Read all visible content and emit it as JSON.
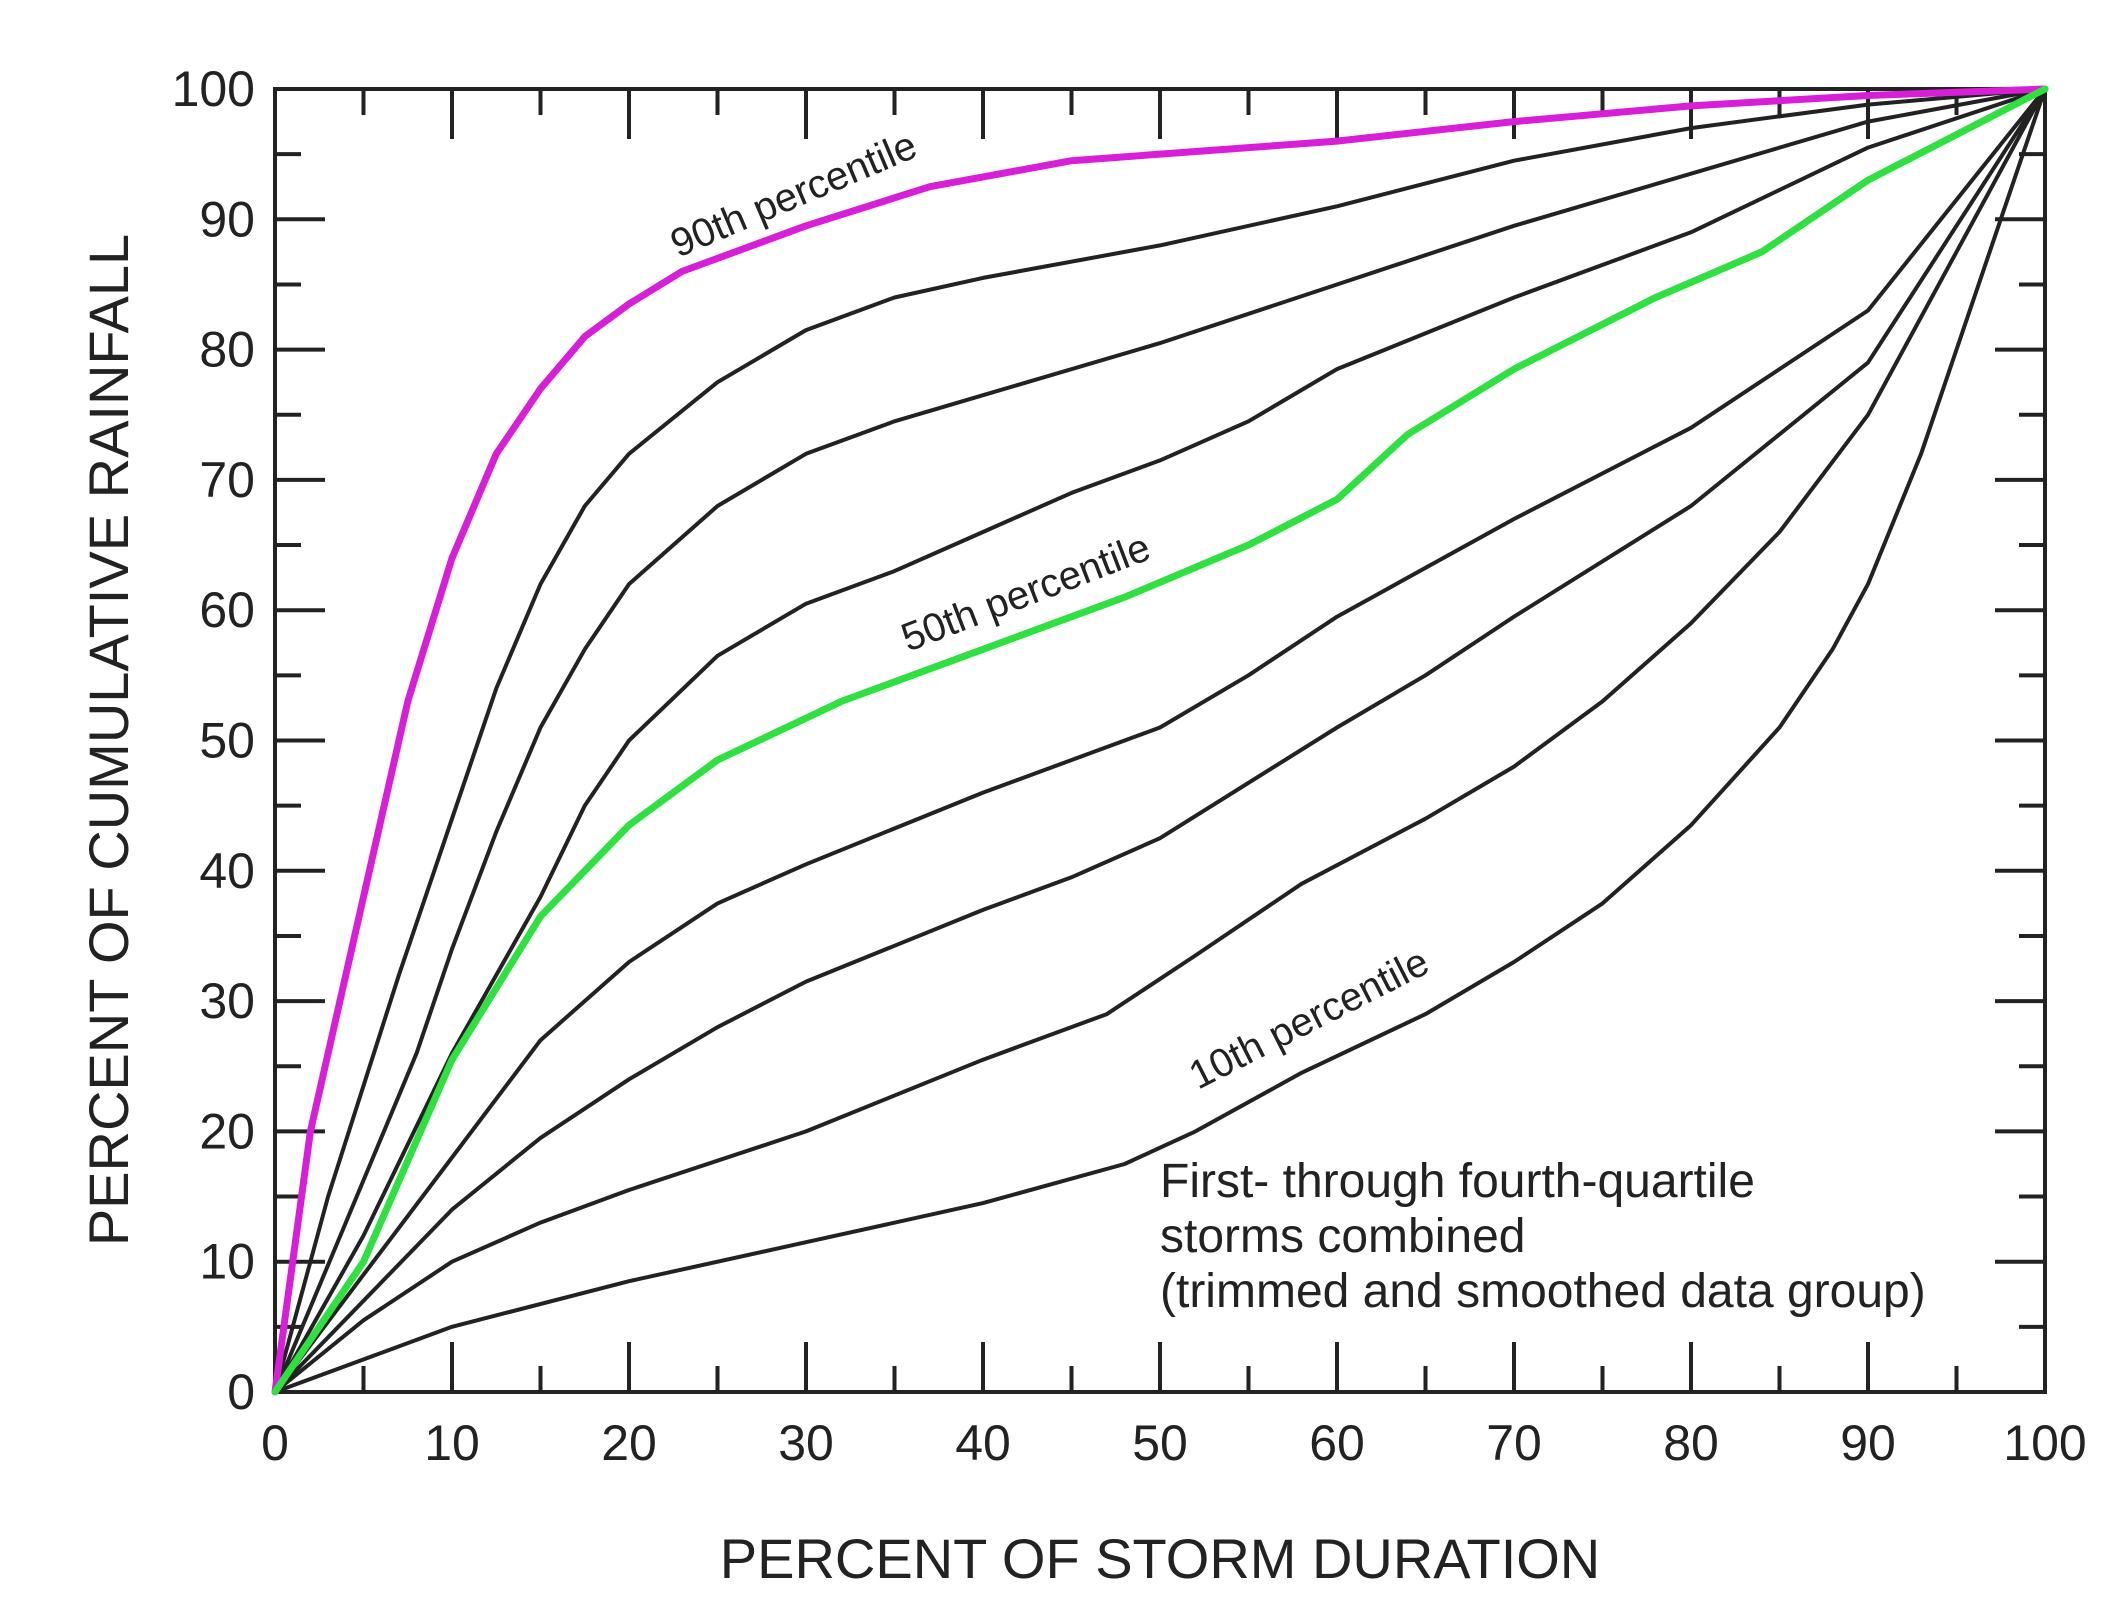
{
  "chart_data": {
    "type": "line",
    "title": "",
    "xlabel": "PERCENT OF STORM DURATION",
    "ylabel": "PERCENT OF CUMULATIVE RAINFALL",
    "xlim": [
      0,
      100
    ],
    "ylim": [
      0,
      100
    ],
    "x_ticks": [
      "0",
      "10",
      "20",
      "30",
      "40",
      "50",
      "60",
      "70",
      "80",
      "90",
      "100"
    ],
    "y_ticks": [
      "0",
      "10",
      "20",
      "30",
      "40",
      "50",
      "60",
      "70",
      "80",
      "90",
      "100"
    ],
    "grid": false,
    "annotation": [
      "First- through fourth-quartile",
      "storms combined",
      "(trimmed and smoothed data group)"
    ],
    "curve_labels": {
      "p90": "90th percentile",
      "p50": "50th percentile",
      "p10": "10th percentile"
    },
    "colors": {
      "p90": "#d61fd6",
      "p50": "#2ee040",
      "other": "#222222"
    },
    "series": [
      {
        "id": "p90",
        "name": "90th percentile",
        "color": "#d61fd6",
        "width": 7,
        "points": [
          [
            0,
            0
          ],
          [
            2,
            20
          ],
          [
            5,
            38
          ],
          [
            7.5,
            53
          ],
          [
            10,
            64
          ],
          [
            12.5,
            72
          ],
          [
            15,
            77
          ],
          [
            17.5,
            81
          ],
          [
            20,
            83.5
          ],
          [
            23,
            86
          ],
          [
            30,
            89.5
          ],
          [
            37,
            92.5
          ],
          [
            45,
            94.5
          ],
          [
            55,
            95.5
          ],
          [
            60,
            96
          ],
          [
            70,
            97.5
          ],
          [
            80,
            98.7
          ],
          [
            90,
            99.5
          ],
          [
            100,
            100
          ]
        ]
      },
      {
        "id": "p80",
        "color": "#222222",
        "width": 4,
        "points": [
          [
            0,
            0
          ],
          [
            3,
            15
          ],
          [
            7,
            32
          ],
          [
            10,
            44
          ],
          [
            12.5,
            54
          ],
          [
            15,
            62
          ],
          [
            17.5,
            68
          ],
          [
            20,
            72
          ],
          [
            25,
            77.5
          ],
          [
            30,
            81.5
          ],
          [
            35,
            84
          ],
          [
            40,
            85.5
          ],
          [
            50,
            88
          ],
          [
            60,
            91
          ],
          [
            70,
            94.5
          ],
          [
            80,
            97
          ],
          [
            90,
            98.8
          ],
          [
            100,
            100
          ]
        ]
      },
      {
        "id": "p70",
        "color": "#222222",
        "width": 4,
        "points": [
          [
            0,
            0
          ],
          [
            4,
            13
          ],
          [
            8,
            26
          ],
          [
            10,
            34
          ],
          [
            12.5,
            43
          ],
          [
            15,
            51
          ],
          [
            17.5,
            57
          ],
          [
            20,
            62
          ],
          [
            25,
            68
          ],
          [
            30,
            72
          ],
          [
            35,
            74.5
          ],
          [
            40,
            76.5
          ],
          [
            50,
            80.5
          ],
          [
            60,
            85
          ],
          [
            70,
            89.5
          ],
          [
            80,
            93.5
          ],
          [
            90,
            97.5
          ],
          [
            100,
            100
          ]
        ]
      },
      {
        "id": "p60",
        "color": "#222222",
        "width": 4,
        "points": [
          [
            0,
            0
          ],
          [
            5,
            12
          ],
          [
            10,
            26
          ],
          [
            15,
            38
          ],
          [
            17.5,
            45
          ],
          [
            20,
            50
          ],
          [
            25,
            56.5
          ],
          [
            30,
            60.5
          ],
          [
            35,
            63
          ],
          [
            40,
            66
          ],
          [
            45,
            69
          ],
          [
            50,
            71.5
          ],
          [
            55,
            74.5
          ],
          [
            60,
            78.5
          ],
          [
            70,
            84
          ],
          [
            80,
            89
          ],
          [
            90,
            95.5
          ],
          [
            100,
            100
          ]
        ]
      },
      {
        "id": "p50",
        "name": "50th percentile",
        "color": "#2ee040",
        "width": 7,
        "points": [
          [
            0,
            0
          ],
          [
            5,
            10
          ],
          [
            10,
            25.5
          ],
          [
            15,
            36.5
          ],
          [
            20,
            43.5
          ],
          [
            25,
            48.5
          ],
          [
            32,
            53
          ],
          [
            40,
            57
          ],
          [
            48,
            61
          ],
          [
            55,
            65
          ],
          [
            60,
            68.5
          ],
          [
            64,
            73.5
          ],
          [
            70,
            78.5
          ],
          [
            78,
            84
          ],
          [
            84,
            87.5
          ],
          [
            90,
            93
          ],
          [
            100,
            100
          ]
        ]
      },
      {
        "id": "p40",
        "color": "#222222",
        "width": 4,
        "points": [
          [
            0,
            0
          ],
          [
            5,
            9
          ],
          [
            10,
            18
          ],
          [
            15,
            27
          ],
          [
            20,
            33
          ],
          [
            25,
            37.5
          ],
          [
            30,
            40.5
          ],
          [
            40,
            46
          ],
          [
            50,
            51
          ],
          [
            55,
            55
          ],
          [
            60,
            59.5
          ],
          [
            70,
            67
          ],
          [
            80,
            74
          ],
          [
            90,
            83
          ],
          [
            100,
            100
          ]
        ]
      },
      {
        "id": "p30",
        "color": "#222222",
        "width": 4,
        "points": [
          [
            0,
            0
          ],
          [
            5,
            7
          ],
          [
            10,
            14
          ],
          [
            15,
            19.5
          ],
          [
            20,
            24
          ],
          [
            25,
            28
          ],
          [
            30,
            31.5
          ],
          [
            40,
            37
          ],
          [
            45,
            39.5
          ],
          [
            50,
            42.5
          ],
          [
            60,
            51
          ],
          [
            65,
            55
          ],
          [
            70,
            59.5
          ],
          [
            80,
            68
          ],
          [
            90,
            79
          ],
          [
            100,
            100
          ]
        ]
      },
      {
        "id": "p20",
        "color": "#222222",
        "width": 4,
        "points": [
          [
            0,
            0
          ],
          [
            5,
            5.5
          ],
          [
            10,
            10
          ],
          [
            15,
            13
          ],
          [
            20,
            15.5
          ],
          [
            30,
            20
          ],
          [
            40,
            25.5
          ],
          [
            47,
            29
          ],
          [
            52,
            33.5
          ],
          [
            58,
            39
          ],
          [
            65,
            44
          ],
          [
            70,
            48
          ],
          [
            75,
            53
          ],
          [
            80,
            59
          ],
          [
            85,
            66
          ],
          [
            90,
            75
          ],
          [
            100,
            100
          ]
        ]
      },
      {
        "id": "p10",
        "name": "10th percentile",
        "color": "#222222",
        "width": 4,
        "points": [
          [
            0,
            0
          ],
          [
            10,
            5
          ],
          [
            20,
            8.5
          ],
          [
            30,
            11.5
          ],
          [
            40,
            14.5
          ],
          [
            48,
            17.5
          ],
          [
            52,
            20
          ],
          [
            58,
            24.5
          ],
          [
            65,
            29
          ],
          [
            70,
            33
          ],
          [
            75,
            37.5
          ],
          [
            80,
            43.5
          ],
          [
            85,
            51
          ],
          [
            88,
            57
          ],
          [
            90,
            62
          ],
          [
            93,
            72
          ],
          [
            96,
            84
          ],
          [
            100,
            100
          ]
        ]
      }
    ]
  }
}
